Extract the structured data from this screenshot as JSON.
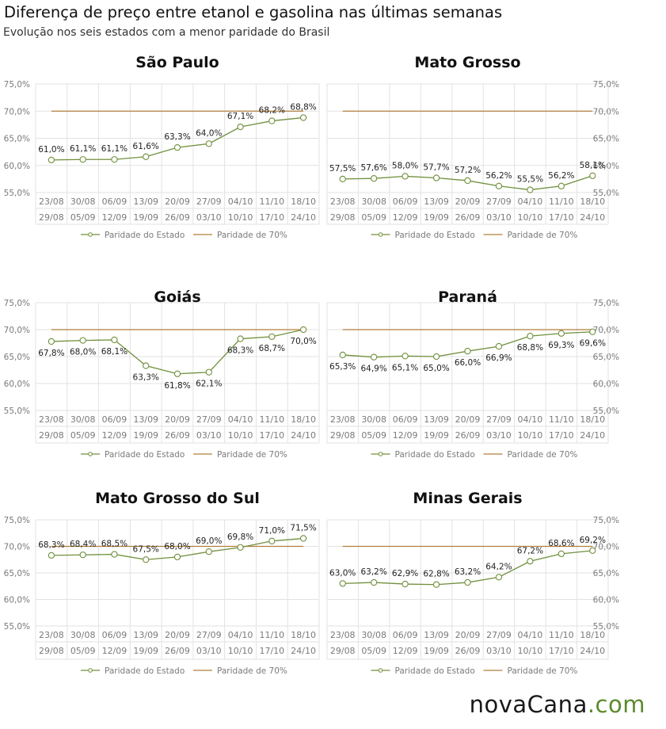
{
  "title": "Diferença de preço entre etanol e gasolina nas últimas semanas",
  "subtitle": "Evolução nos seis estados com a menor paridade do Brasil",
  "brand": {
    "part1": "novaCana",
    "part2": ".com"
  },
  "colors": {
    "series_line": "#70903c",
    "reference_line": "#b07f3c",
    "grid": "#e2e2e2",
    "axis_text": "#7a7a7a",
    "label_text": "#222222"
  },
  "chart_data": [
    {
      "type": "line",
      "title": "São Paulo",
      "categories_top": [
        "23/08",
        "30/08",
        "06/09",
        "13/09",
        "20/09",
        "27/09",
        "04/10",
        "11/10",
        "18/10"
      ],
      "categories_bottom": [
        "29/08",
        "05/09",
        "12/09",
        "19/09",
        "26/09",
        "03/10",
        "10/10",
        "17/10",
        "24/10"
      ],
      "series": [
        {
          "name": "Paridade do Estado",
          "values": [
            61.0,
            61.1,
            61.1,
            61.6,
            63.3,
            64.0,
            67.1,
            68.2,
            68.8
          ],
          "labels": [
            "61,0%",
            "61,1%",
            "61,1%",
            "61,6%",
            "63,3%",
            "64,0%",
            "67,1%",
            "68,2%",
            "68,8%"
          ]
        },
        {
          "name": "Paridade de 70%",
          "values": [
            70,
            70,
            70,
            70,
            70,
            70,
            70,
            70,
            70
          ]
        }
      ],
      "ylim": [
        55,
        75
      ],
      "yticks": [
        "55,0%",
        "60,0%",
        "65,0%",
        "70,0%",
        "75,0%"
      ],
      "yaxis_side": "left",
      "grid": true,
      "legend": "bottom"
    },
    {
      "type": "line",
      "title": "Mato Grosso",
      "categories_top": [
        "23/08",
        "30/08",
        "06/09",
        "13/09",
        "20/09",
        "27/09",
        "04/10",
        "11/10",
        "18/10"
      ],
      "categories_bottom": [
        "29/08",
        "05/09",
        "12/09",
        "19/09",
        "26/09",
        "03/10",
        "10/10",
        "17/10",
        "24/10"
      ],
      "series": [
        {
          "name": "Paridade do Estado",
          "values": [
            57.5,
            57.6,
            58.0,
            57.7,
            57.2,
            56.2,
            55.5,
            56.2,
            58.1
          ],
          "labels": [
            "57,5%",
            "57,6%",
            "58,0%",
            "57,7%",
            "57,2%",
            "56,2%",
            "55,5%",
            "56,2%",
            "58,1%"
          ]
        },
        {
          "name": "Paridade de 70%",
          "values": [
            70,
            70,
            70,
            70,
            70,
            70,
            70,
            70,
            70
          ]
        }
      ],
      "ylim": [
        55,
        75
      ],
      "yticks": [
        "55,0%",
        "60,0%",
        "65,0%",
        "70,0%",
        "75,0%"
      ],
      "yaxis_side": "right",
      "grid": true,
      "legend": "bottom"
    },
    {
      "type": "line",
      "title": "Goiás",
      "categories_top": [
        "23/08",
        "30/08",
        "06/09",
        "13/09",
        "20/09",
        "27/09",
        "04/10",
        "11/10",
        "18/10"
      ],
      "categories_bottom": [
        "29/08",
        "05/09",
        "12/09",
        "19/09",
        "26/09",
        "03/10",
        "10/10",
        "17/10",
        "24/10"
      ],
      "series": [
        {
          "name": "Paridade do Estado",
          "values": [
            67.8,
            68.0,
            68.1,
            63.3,
            61.8,
            62.1,
            68.3,
            68.7,
            70.0
          ],
          "labels": [
            "67,8%",
            "68,0%",
            "68,1%",
            "63,3%",
            "61,8%",
            "62,1%",
            "68,3%",
            "68,7%",
            "70,0%"
          ]
        },
        {
          "name": "Paridade de 70%",
          "values": [
            70,
            70,
            70,
            70,
            70,
            70,
            70,
            70,
            70
          ]
        }
      ],
      "ylim": [
        55,
        75
      ],
      "yticks": [
        "55,0%",
        "60,0%",
        "65,0%",
        "70,0%",
        "75,0%"
      ],
      "yaxis_side": "left",
      "grid": true,
      "legend": "bottom"
    },
    {
      "type": "line",
      "title": "Paraná",
      "categories_top": [
        "23/08",
        "30/08",
        "06/09",
        "13/09",
        "20/09",
        "27/09",
        "04/10",
        "11/10",
        "18/10"
      ],
      "categories_bottom": [
        "29/08",
        "05/09",
        "12/09",
        "19/09",
        "26/09",
        "03/10",
        "10/10",
        "17/10",
        "24/10"
      ],
      "series": [
        {
          "name": "Paridade do Estado",
          "values": [
            65.3,
            64.9,
            65.1,
            65.0,
            66.0,
            66.9,
            68.8,
            69.3,
            69.6
          ],
          "labels": [
            "65,3%",
            "64,9%",
            "65,1%",
            "65,0%",
            "66,0%",
            "66,9%",
            "68,8%",
            "69,3%",
            "69,6%"
          ]
        },
        {
          "name": "Paridade de 70%",
          "values": [
            70,
            70,
            70,
            70,
            70,
            70,
            70,
            70,
            70
          ]
        }
      ],
      "ylim": [
        55,
        75
      ],
      "yticks": [
        "55,0%",
        "60,0%",
        "65,0%",
        "70,0%",
        "75,0%"
      ],
      "yaxis_side": "right",
      "grid": true,
      "legend": "bottom"
    },
    {
      "type": "line",
      "title": "Mato Grosso do Sul",
      "categories_top": [
        "23/08",
        "30/08",
        "06/09",
        "13/09",
        "20/09",
        "27/09",
        "04/10",
        "11/10",
        "18/10"
      ],
      "categories_bottom": [
        "29/08",
        "05/09",
        "12/09",
        "19/09",
        "26/09",
        "03/10",
        "10/10",
        "17/10",
        "24/10"
      ],
      "series": [
        {
          "name": "Paridade do Estado",
          "values": [
            68.3,
            68.4,
            68.5,
            67.5,
            68.0,
            69.0,
            69.8,
            71.0,
            71.5
          ],
          "labels": [
            "68,3%",
            "68,4%",
            "68,5%",
            "67,5%",
            "68,0%",
            "69,0%",
            "69,8%",
            "71,0%",
            "71,5%"
          ]
        },
        {
          "name": "Paridade de 70%",
          "values": [
            70,
            70,
            70,
            70,
            70,
            70,
            70,
            70,
            70
          ]
        }
      ],
      "ylim": [
        55,
        75
      ],
      "yticks": [
        "55,0%",
        "60,0%",
        "65,0%",
        "70,0%",
        "75,0%"
      ],
      "yaxis_side": "left",
      "grid": true,
      "legend": "bottom"
    },
    {
      "type": "line",
      "title": "Minas Gerais",
      "categories_top": [
        "23/08",
        "30/08",
        "06/09",
        "13/09",
        "20/09",
        "27/09",
        "04/10",
        "11/10",
        "18/10"
      ],
      "categories_bottom": [
        "29/08",
        "05/09",
        "12/09",
        "19/09",
        "26/09",
        "03/10",
        "10/10",
        "17/10",
        "24/10"
      ],
      "series": [
        {
          "name": "Paridade do Estado",
          "values": [
            63.0,
            63.2,
            62.9,
            62.8,
            63.2,
            64.2,
            67.2,
            68.6,
            69.2
          ],
          "labels": [
            "63,0%",
            "63,2%",
            "62,9%",
            "62,8%",
            "63,2%",
            "64,2%",
            "67,2%",
            "68,6%",
            "69,2%"
          ]
        },
        {
          "name": "Paridade de 70%",
          "values": [
            70,
            70,
            70,
            70,
            70,
            70,
            70,
            70,
            70
          ]
        }
      ],
      "ylim": [
        55,
        75
      ],
      "yticks": [
        "55,0%",
        "60,0%",
        "65,0%",
        "70,0%",
        "75,0%"
      ],
      "yaxis_side": "right",
      "grid": true,
      "legend": "bottom"
    }
  ]
}
